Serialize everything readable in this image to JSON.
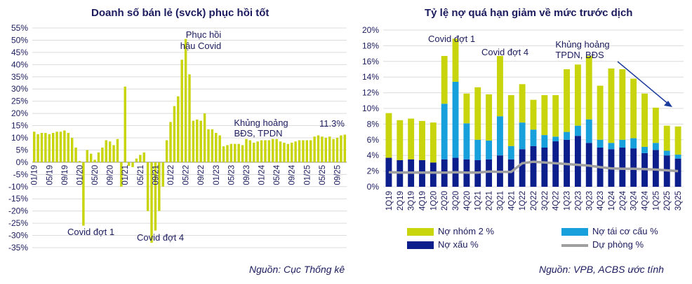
{
  "colors": {
    "lime": "#c8d40c",
    "navy": "#0c1e8c",
    "cyan": "#18a0dc",
    "gray": "#a0a0a0",
    "text": "#1b1b5e",
    "grid": "#dcdcdc",
    "arrow": "#1c3c9c"
  },
  "left": {
    "title": "Doanh số bán lẻ (svck) phục hồi tốt",
    "source": "Nguồn: Cục Thống kê"
  },
  "right": {
    "title": "Tỷ lệ nợ quá hạn giảm về mức trước dịch",
    "source": "Nguồn: VPB, ACBS ước tính",
    "legend": {
      "nhom2": "Nợ nhóm 2 %",
      "taicocau": "Nợ tái cơ cấu %",
      "noxau": "Nợ xấu %",
      "duphong": "Dự phòng %"
    }
  },
  "chart_data": [
    {
      "type": "bar",
      "title": "Doanh số bán lẻ (svck) phục hồi tốt",
      "xlabel": "",
      "ylabel": "",
      "ylim": [
        -35,
        55
      ],
      "yticks": [
        "-35%",
        "-30%",
        "-25%",
        "-20%",
        "-15%",
        "-10%",
        "-5%",
        "0%",
        "5%",
        "10%",
        "15%",
        "20%",
        "25%",
        "30%",
        "35%",
        "40%",
        "45%",
        "50%",
        "55%"
      ],
      "x_tick_labels": [
        "01/19",
        "05/19",
        "09/19",
        "01/20",
        "05/20",
        "09/20",
        "01/21",
        "05/21",
        "09/21",
        "01/22",
        "05/22",
        "09/22",
        "01/23",
        "05/23",
        "09/23",
        "01/24",
        "05/24",
        "09/24",
        "01/25",
        "05/25",
        "09/25"
      ],
      "categories_start": "01/19",
      "frequency": "monthly",
      "values": [
        12.5,
        11.5,
        12.0,
        12.0,
        11.5,
        12.0,
        12.5,
        12.5,
        13.0,
        12.0,
        10.0,
        6.0,
        0.5,
        -26.0,
        5.0,
        3.5,
        1.0,
        4.0,
        6.0,
        9.0,
        8.5,
        7.0,
        9.5,
        -10.0,
        31.0,
        -1.5,
        -2.0,
        1.5,
        3.0,
        4.0,
        -20.0,
        -33.0,
        -28.0,
        -20.0,
        -10.0,
        9.0,
        16.5,
        23.0,
        27.0,
        42.0,
        50.5,
        36.0,
        17.0,
        17.5,
        17.0,
        20.0,
        13.5,
        13.5,
        12.0,
        11.0,
        6.5,
        7.0,
        7.5,
        7.5,
        7.5,
        7.0,
        9.5,
        9.0,
        8.0,
        8.5,
        9.0,
        9.0,
        9.0,
        9.5,
        9.5,
        8.5,
        8.0,
        7.5,
        8.0,
        8.5,
        9.0,
        9.0,
        9.0,
        9.0,
        10.5,
        11.0,
        10.5,
        10.0,
        10.5,
        9.5,
        10.0,
        11.0,
        11.3
      ],
      "annotations": [
        "Covid đợt 1",
        "Phục hồi hậu Covid",
        "Covid đợt 4",
        "Khủng hoảng BĐS, TPDN",
        "11.3%"
      ]
    },
    {
      "type": "bar",
      "stacked": true,
      "title": "Tỷ lệ nợ quá hạn giảm về mức trước dịch",
      "xlabel": "",
      "ylabel": "",
      "ylim": [
        0,
        20
      ],
      "yticks": [
        "0%",
        "2%",
        "4%",
        "6%",
        "8%",
        "10%",
        "12%",
        "14%",
        "16%",
        "18%",
        "20%"
      ],
      "categories": [
        "1Q19",
        "2Q19",
        "3Q19",
        "4Q19",
        "1Q20",
        "2Q20",
        "3Q20",
        "4Q20",
        "1Q21",
        "2Q21",
        "3Q21",
        "4Q21",
        "1Q22",
        "2Q22",
        "3Q22",
        "4Q22",
        "1Q23",
        "2Q23",
        "3Q23",
        "4Q23",
        "1Q24",
        "2Q24",
        "3Q24",
        "4Q24",
        "1Q25",
        "2Q25",
        "3Q25"
      ],
      "series": [
        {
          "name": "Nợ xấu %",
          "kind": "bar",
          "values": [
            3.7,
            3.4,
            3.5,
            3.4,
            3.1,
            3.5,
            3.7,
            3.5,
            3.4,
            3.5,
            4.0,
            3.5,
            4.8,
            5.2,
            5.0,
            5.8,
            6.0,
            6.5,
            5.6,
            5.0,
            4.8,
            5.0,
            4.9,
            4.3,
            4.7,
            4.0,
            3.6
          ]
        },
        {
          "name": "Nợ tái cơ cấu %",
          "kind": "bar",
          "values": [
            0,
            0,
            0,
            0,
            0,
            7.1,
            9.7,
            4.6,
            2.6,
            2.4,
            5.0,
            1.7,
            3.4,
            2.1,
            1.6,
            0.6,
            1.0,
            1.3,
            3.0,
            1.0,
            0.8,
            1.0,
            1.3,
            0.8,
            0.9,
            0.6,
            0.5
          ]
        },
        {
          "name": "Nợ nhóm 2 %",
          "kind": "bar",
          "values": [
            5.7,
            5.1,
            5.2,
            5.0,
            5.1,
            6.1,
            5.5,
            3.8,
            6.7,
            5.9,
            7.7,
            6.5,
            4.9,
            3.8,
            5.1,
            5.3,
            8.0,
            7.8,
            8.1,
            6.9,
            9.5,
            9.0,
            7.6,
            6.8,
            4.5,
            3.2,
            3.6
          ]
        },
        {
          "name": "Dự phòng %",
          "kind": "line",
          "values": [
            1.85,
            1.8,
            1.8,
            1.8,
            1.8,
            1.8,
            1.85,
            1.8,
            1.8,
            1.95,
            1.9,
            1.9,
            3.0,
            3.2,
            3.1,
            3.0,
            2.9,
            2.8,
            2.7,
            2.5,
            2.35,
            2.3,
            2.3,
            2.25,
            2.2,
            2.1,
            2.0
          ]
        }
      ],
      "annotations": [
        "Covid đợt 1",
        "Covid đợt 4",
        "Khủng hoảng TPDN, BĐS"
      ],
      "legend_position": "bottom"
    }
  ]
}
